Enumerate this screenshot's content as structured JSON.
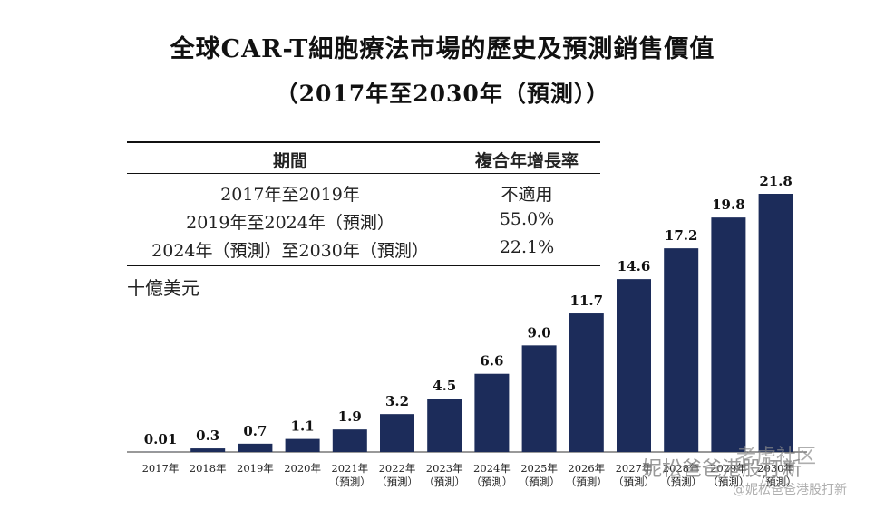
{
  "title_line1": "全球CAR-T細胞療法市場的歷史及預測銷售價值",
  "title_line2": "（2017年至2030年（預測））",
  "table": {
    "headers": [
      "期間",
      "複合年增長率"
    ],
    "rows": [
      [
        "2017年至2019年",
        "不適用"
      ],
      [
        "2019年至2024年（預測）",
        "55.0%"
      ],
      [
        "2024年（預測）至2030年（預測）",
        "22.1%"
      ]
    ]
  },
  "unit": "十億美元",
  "chart_data": {
    "type": "bar",
    "categories": [
      "2017年",
      "2018年",
      "2019年",
      "2020年",
      "2021年\n（預測）",
      "2022年\n（預測）",
      "2023年\n（預測）",
      "2024年\n（預測）",
      "2025年\n（預測）",
      "2026年\n（預測）",
      "2027年\n（預測）",
      "2028年\n（預測）",
      "2029年\n（預測）",
      "2030年\n（預測）"
    ],
    "values": [
      0.01,
      0.3,
      0.7,
      1.1,
      1.9,
      3.2,
      4.5,
      6.6,
      9.0,
      11.7,
      14.6,
      17.2,
      19.8,
      21.8
    ],
    "value_labels": [
      "0.01",
      "0.3",
      "0.7",
      "1.1",
      "1.9",
      "3.2",
      "4.5",
      "6.6",
      "9.0",
      "11.7",
      "14.6",
      "17.2",
      "19.8",
      "21.8"
    ],
    "ylabel": "十億美元",
    "ylim": [
      0,
      21.8
    ],
    "bar_color": "#1c2c5a",
    "grid": false
  },
  "watermark": {
    "line1": "妮松爸爸港股打新",
    "line2": "老虎社区",
    "line3": "@妮松爸爸港股打新"
  }
}
